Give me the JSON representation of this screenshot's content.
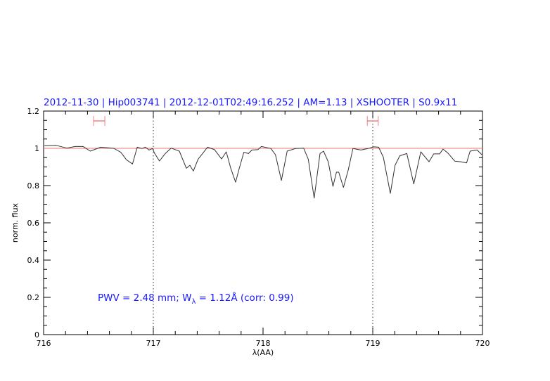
{
  "chart_data": {
    "type": "line",
    "title": "2012-11-30 | Hip003741 | 2012-12-01T02:49:16.252 | AM=1.13 | XSHOOTER | S0.9x11",
    "xlabel": "λ(AA)",
    "ylabel": "norm. flux",
    "xlim": [
      716,
      720
    ],
    "ylim": [
      0,
      1.2
    ],
    "xticks": [
      716,
      717,
      718,
      719,
      720
    ],
    "xtick_labels": [
      "716",
      "717",
      "718",
      "719",
      "720"
    ],
    "yticks": [
      0,
      0.2,
      0.4,
      0.6,
      0.8,
      1,
      1.2
    ],
    "ytick_labels": [
      "0",
      "0.2",
      "0.4",
      "0.6",
      "0.8",
      "1",
      "1.2"
    ],
    "grid": false,
    "reference_line": {
      "y": 1.0,
      "color": "#e87a6e"
    },
    "vertical_markers": [
      717,
      719
    ],
    "ranges": [
      {
        "x": [
          716.455,
          716.558
        ],
        "y": 1.147,
        "color": "#f08080"
      },
      {
        "x": [
          718.95,
          719.05
        ],
        "y": 1.147,
        "color": "#f08080"
      }
    ],
    "annotation": {
      "prefix": "PWV = 2.48 mm; W",
      "subscript": "λ",
      "suffix": " = 1.12Å (corr: 0.99)"
    },
    "colors": {
      "spectrum": "#333333",
      "text": "#1a1aff"
    },
    "series": [
      {
        "x": [
          716.008,
          716.115,
          716.212,
          716.287,
          716.361,
          716.425,
          716.521,
          716.639,
          716.703,
          716.756,
          716.81,
          716.853,
          716.896,
          716.928,
          716.96,
          716.992,
          717.013,
          717.056,
          717.109,
          717.162,
          717.237,
          717.301,
          717.333,
          717.365,
          717.408,
          717.494,
          717.558,
          717.622,
          717.665,
          717.707,
          717.75,
          717.782,
          717.825,
          717.867,
          717.899,
          717.953,
          717.985,
          718.071,
          718.113,
          718.167,
          718.22,
          718.295,
          718.37,
          718.412,
          718.466,
          718.519,
          718.551,
          718.594,
          718.637,
          718.669,
          718.69,
          718.733,
          718.776,
          718.819,
          718.893,
          718.957,
          719.011,
          719.053,
          719.096,
          719.16,
          719.203,
          719.246,
          719.31,
          719.374,
          719.438,
          719.513,
          719.556,
          719.609,
          719.641,
          719.684,
          719.748,
          719.801,
          719.855,
          719.887,
          719.951,
          719.994
        ],
        "y": [
          1.014,
          1.016,
          1.001,
          1.01,
          1.01,
          0.985,
          1.006,
          1.0,
          0.979,
          0.938,
          0.916,
          1.006,
          0.999,
          1.006,
          0.991,
          0.999,
          0.972,
          0.932,
          0.972,
          1.001,
          0.985,
          0.893,
          0.909,
          0.878,
          0.941,
          1.006,
          0.993,
          0.943,
          0.981,
          0.89,
          0.818,
          0.89,
          0.979,
          0.972,
          0.991,
          0.993,
          1.01,
          0.999,
          0.966,
          0.828,
          0.985,
          0.999,
          1.001,
          0.942,
          0.733,
          0.972,
          0.985,
          0.928,
          0.796,
          0.872,
          0.872,
          0.79,
          0.883,
          0.999,
          0.991,
          0.999,
          1.008,
          1.006,
          0.953,
          0.758,
          0.909,
          0.96,
          0.972,
          0.809,
          0.981,
          0.928,
          0.97,
          0.97,
          0.996,
          0.975,
          0.931,
          0.928,
          0.922,
          0.985,
          0.991,
          0.966
        ]
      }
    ]
  }
}
